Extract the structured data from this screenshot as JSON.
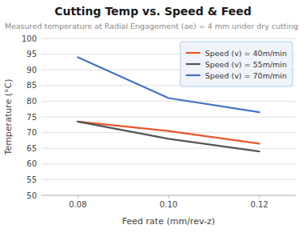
{
  "chart_data": {
    "type": "line",
    "title": "Cutting Temp vs. Speed & Feed",
    "subtitle": "Measured temperature at Radial Engagement (ae) = 4 mm under dry cutting",
    "x_label": "Feed rate (mm/rev-z)",
    "y_label": "Temperature (°C)",
    "x": [
      0.08,
      0.1,
      0.12
    ],
    "series": [
      {
        "name": "Speed (v) = 40m/min",
        "color": "#e8572a",
        "values": [
          73.5,
          70.5,
          66.5
        ]
      },
      {
        "name": "Speed (v) = 55m/min",
        "color": "#555555",
        "values": [
          73.5,
          68.0,
          64.0
        ]
      },
      {
        "name": "Speed (v) = 70m/min",
        "color": "#4472c4",
        "values": [
          94.0,
          81.0,
          76.5
        ]
      }
    ],
    "xlim": [
      0.072,
      0.128
    ],
    "ylim": [
      50,
      100
    ],
    "xticks": [
      0.08,
      {
        "value": 0.1,
        "label": "0.10"
      },
      0.12
    ],
    "yticks": [
      50,
      55,
      60,
      65,
      70,
      75,
      80,
      85,
      90,
      95,
      100
    ],
    "grid": true,
    "legend": "upper right"
  }
}
